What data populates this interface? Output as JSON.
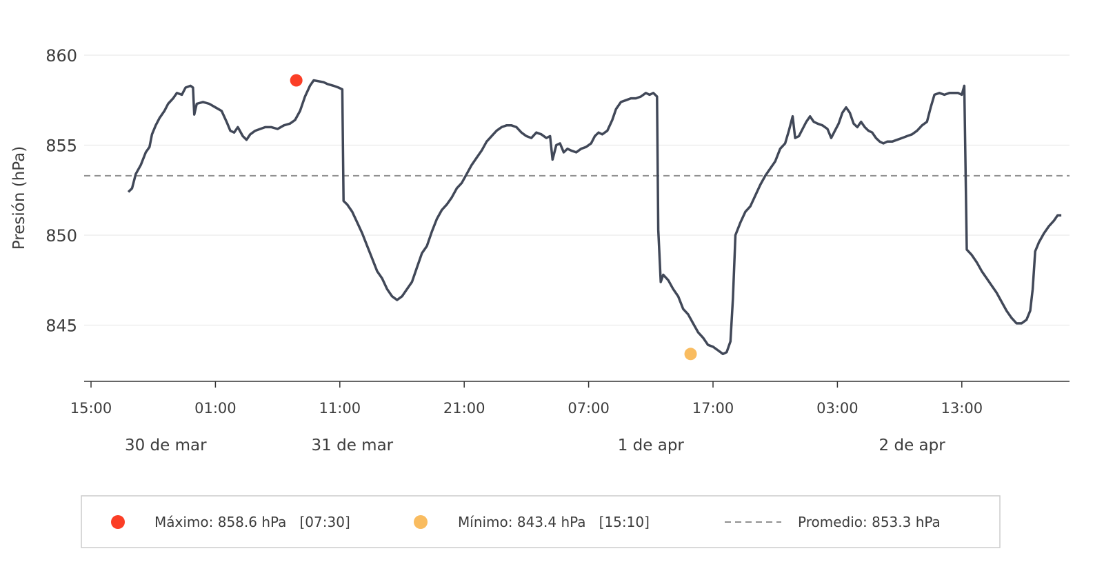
{
  "chart_data": {
    "type": "line",
    "ylabel": "Presión (hPa)",
    "ylim": [
      842,
      861.2
    ],
    "yticks": [
      845,
      850,
      855,
      860
    ],
    "xlim_hours": [
      -0.5,
      86.5
    ],
    "xticks": [
      {
        "h": 0,
        "label": "15:00"
      },
      {
        "h": 10,
        "label": "01:00"
      },
      {
        "h": 20,
        "label": "11:00"
      },
      {
        "h": 30,
        "label": "21:00"
      },
      {
        "h": 40,
        "label": "07:00"
      },
      {
        "h": 50,
        "label": "17:00"
      },
      {
        "h": 60,
        "label": "03:00"
      },
      {
        "h": 70,
        "label": "13:00"
      }
    ],
    "date_labels": [
      {
        "h": 6,
        "label": "30 de mar"
      },
      {
        "h": 21,
        "label": "31 de mar"
      },
      {
        "h": 45,
        "label": "1 de apr"
      },
      {
        "h": 66,
        "label": "2 de apr"
      }
    ],
    "series": [
      {
        "color": "#414858",
        "points": [
          [
            3.0,
            852.4
          ],
          [
            3.3,
            852.6
          ],
          [
            3.6,
            853.4
          ],
          [
            4.0,
            853.9
          ],
          [
            4.4,
            854.6
          ],
          [
            4.7,
            854.9
          ],
          [
            4.9,
            855.6
          ],
          [
            5.2,
            856.1
          ],
          [
            5.5,
            856.5
          ],
          [
            5.9,
            856.9
          ],
          [
            6.2,
            857.3
          ],
          [
            6.6,
            857.6
          ],
          [
            6.9,
            857.9
          ],
          [
            7.3,
            857.8
          ],
          [
            7.6,
            858.2
          ],
          [
            8.0,
            858.3
          ],
          [
            8.2,
            858.2
          ],
          [
            8.3,
            856.7
          ],
          [
            8.5,
            857.3
          ],
          [
            9.0,
            857.4
          ],
          [
            9.5,
            857.3
          ],
          [
            10.0,
            857.1
          ],
          [
            10.5,
            856.9
          ],
          [
            10.9,
            856.3
          ],
          [
            11.2,
            855.8
          ],
          [
            11.5,
            855.7
          ],
          [
            11.8,
            856.0
          ],
          [
            12.2,
            855.5
          ],
          [
            12.5,
            855.3
          ],
          [
            12.8,
            855.6
          ],
          [
            13.2,
            855.8
          ],
          [
            13.6,
            855.9
          ],
          [
            14.0,
            856.0
          ],
          [
            14.5,
            856.0
          ],
          [
            15.0,
            855.9
          ],
          [
            15.5,
            856.1
          ],
          [
            16.0,
            856.2
          ],
          [
            16.4,
            856.4
          ],
          [
            16.8,
            856.9
          ],
          [
            17.2,
            857.7
          ],
          [
            17.6,
            858.3
          ],
          [
            17.9,
            858.6
          ],
          [
            18.7,
            858.5
          ],
          [
            19.0,
            858.4
          ],
          [
            19.5,
            858.3
          ],
          [
            19.9,
            858.2
          ],
          [
            20.2,
            858.1
          ],
          [
            20.3,
            851.9
          ],
          [
            20.6,
            851.7
          ],
          [
            21.0,
            851.3
          ],
          [
            21.4,
            850.7
          ],
          [
            21.8,
            850.1
          ],
          [
            22.2,
            849.4
          ],
          [
            22.6,
            848.7
          ],
          [
            23.0,
            848.0
          ],
          [
            23.4,
            847.6
          ],
          [
            23.8,
            847.0
          ],
          [
            24.2,
            846.6
          ],
          [
            24.6,
            846.4
          ],
          [
            25.0,
            846.6
          ],
          [
            25.4,
            847.0
          ],
          [
            25.8,
            847.4
          ],
          [
            26.2,
            848.2
          ],
          [
            26.6,
            849.0
          ],
          [
            27.0,
            849.4
          ],
          [
            27.4,
            850.2
          ],
          [
            27.8,
            850.9
          ],
          [
            28.2,
            851.4
          ],
          [
            28.6,
            851.7
          ],
          [
            29.0,
            852.1
          ],
          [
            29.4,
            852.6
          ],
          [
            29.8,
            852.9
          ],
          [
            30.2,
            853.4
          ],
          [
            30.6,
            853.9
          ],
          [
            31.0,
            854.3
          ],
          [
            31.4,
            854.7
          ],
          [
            31.8,
            855.2
          ],
          [
            32.2,
            855.5
          ],
          [
            32.6,
            855.8
          ],
          [
            33.0,
            856.0
          ],
          [
            33.4,
            856.1
          ],
          [
            33.8,
            856.1
          ],
          [
            34.2,
            856.0
          ],
          [
            34.6,
            855.7
          ],
          [
            35.0,
            855.5
          ],
          [
            35.4,
            855.4
          ],
          [
            35.8,
            855.7
          ],
          [
            36.2,
            855.6
          ],
          [
            36.6,
            855.4
          ],
          [
            36.9,
            855.5
          ],
          [
            37.1,
            854.2
          ],
          [
            37.4,
            855.0
          ],
          [
            37.7,
            855.1
          ],
          [
            38.0,
            854.6
          ],
          [
            38.3,
            854.8
          ],
          [
            38.6,
            854.7
          ],
          [
            39.0,
            854.6
          ],
          [
            39.4,
            854.8
          ],
          [
            39.8,
            854.9
          ],
          [
            40.2,
            855.1
          ],
          [
            40.5,
            855.5
          ],
          [
            40.8,
            855.7
          ],
          [
            41.1,
            855.6
          ],
          [
            41.5,
            855.8
          ],
          [
            41.9,
            856.4
          ],
          [
            42.2,
            857.0
          ],
          [
            42.6,
            857.4
          ],
          [
            43.0,
            857.5
          ],
          [
            43.4,
            857.6
          ],
          [
            43.8,
            857.6
          ],
          [
            44.2,
            857.7
          ],
          [
            44.6,
            857.9
          ],
          [
            44.9,
            857.8
          ],
          [
            45.2,
            857.9
          ],
          [
            45.5,
            857.7
          ],
          [
            45.6,
            850.3
          ],
          [
            45.8,
            847.4
          ],
          [
            46.0,
            847.8
          ],
          [
            46.4,
            847.5
          ],
          [
            46.8,
            847.0
          ],
          [
            47.2,
            846.6
          ],
          [
            47.6,
            845.9
          ],
          [
            48.0,
            845.6
          ],
          [
            48.4,
            845.1
          ],
          [
            48.8,
            844.6
          ],
          [
            49.2,
            844.3
          ],
          [
            49.6,
            843.9
          ],
          [
            50.0,
            843.8
          ],
          [
            50.4,
            843.6
          ],
          [
            50.8,
            843.4
          ],
          [
            51.1,
            843.5
          ],
          [
            51.4,
            844.1
          ],
          [
            51.6,
            846.5
          ],
          [
            51.8,
            850.0
          ],
          [
            52.2,
            850.7
          ],
          [
            52.6,
            851.3
          ],
          [
            53.0,
            851.6
          ],
          [
            53.4,
            852.2
          ],
          [
            53.8,
            852.8
          ],
          [
            54.2,
            853.3
          ],
          [
            54.6,
            853.7
          ],
          [
            55.0,
            854.1
          ],
          [
            55.4,
            854.8
          ],
          [
            55.8,
            855.1
          ],
          [
            56.1,
            855.8
          ],
          [
            56.4,
            856.6
          ],
          [
            56.6,
            855.4
          ],
          [
            56.9,
            855.5
          ],
          [
            57.2,
            855.9
          ],
          [
            57.5,
            856.3
          ],
          [
            57.8,
            856.6
          ],
          [
            58.1,
            856.3
          ],
          [
            58.4,
            856.2
          ],
          [
            58.8,
            856.1
          ],
          [
            59.2,
            855.9
          ],
          [
            59.5,
            855.4
          ],
          [
            59.8,
            855.8
          ],
          [
            60.1,
            856.2
          ],
          [
            60.4,
            856.8
          ],
          [
            60.7,
            857.1
          ],
          [
            61.0,
            856.8
          ],
          [
            61.3,
            856.2
          ],
          [
            61.6,
            856.0
          ],
          [
            61.9,
            856.3
          ],
          [
            62.2,
            856.0
          ],
          [
            62.5,
            855.8
          ],
          [
            62.8,
            855.7
          ],
          [
            63.1,
            855.4
          ],
          [
            63.4,
            855.2
          ],
          [
            63.7,
            855.1
          ],
          [
            64.0,
            855.2
          ],
          [
            64.4,
            855.2
          ],
          [
            64.8,
            855.3
          ],
          [
            65.2,
            855.4
          ],
          [
            65.6,
            855.5
          ],
          [
            66.0,
            855.6
          ],
          [
            66.4,
            855.8
          ],
          [
            66.8,
            856.1
          ],
          [
            67.2,
            856.3
          ],
          [
            67.5,
            857.1
          ],
          [
            67.8,
            857.8
          ],
          [
            68.2,
            857.9
          ],
          [
            68.6,
            857.8
          ],
          [
            69.0,
            857.9
          ],
          [
            69.4,
            857.9
          ],
          [
            69.7,
            857.9
          ],
          [
            70.0,
            857.8
          ],
          [
            70.2,
            858.3
          ],
          [
            70.4,
            849.2
          ],
          [
            70.8,
            848.9
          ],
          [
            71.2,
            848.5
          ],
          [
            71.6,
            848.0
          ],
          [
            72.0,
            847.6
          ],
          [
            72.4,
            847.2
          ],
          [
            72.8,
            846.8
          ],
          [
            73.2,
            846.3
          ],
          [
            73.6,
            845.8
          ],
          [
            74.0,
            845.4
          ],
          [
            74.4,
            845.1
          ],
          [
            74.8,
            845.1
          ],
          [
            75.2,
            845.3
          ],
          [
            75.5,
            845.8
          ],
          [
            75.7,
            847.0
          ],
          [
            75.9,
            849.1
          ],
          [
            76.2,
            849.6
          ],
          [
            76.6,
            850.1
          ],
          [
            77.0,
            850.5
          ],
          [
            77.4,
            850.8
          ],
          [
            77.7,
            851.1
          ],
          [
            78.0,
            851.1
          ]
        ]
      }
    ],
    "max": {
      "h": 16.5,
      "value": 858.6,
      "color": "#fb3e26",
      "label": "Máximo: 858.6 hPa   [07:30]"
    },
    "min": {
      "h": 48.2,
      "value": 843.4,
      "color": "#f9bc60",
      "label": "Mínimo: 843.4 hPa   [15:10]"
    },
    "mean": {
      "value": 853.3,
      "color": "#909090",
      "label": "Promedio: 853.3 hPa"
    }
  }
}
